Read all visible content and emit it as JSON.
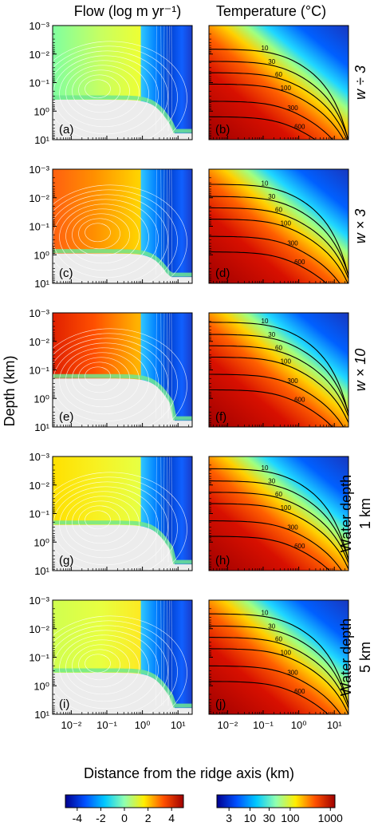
{
  "chart_data": {
    "type": "heatmap",
    "column_titles": [
      "Flow (log m yr⁻¹)",
      "Temperature (°C)"
    ],
    "ylabel": "Depth (km)",
    "xlabel": "Distance from the ridge axis (km)",
    "x_scale": "log",
    "y_scale": "log",
    "y_inverted": true,
    "xlim": [
      0.003,
      25
    ],
    "ylim": [
      0.001,
      10
    ],
    "x_ticks": [
      "10⁻²",
      "10⁻¹",
      "10⁰",
      "10¹"
    ],
    "y_ticks": [
      "10⁻³",
      "10⁻²",
      "10⁻¹",
      "10⁰",
      "10¹"
    ],
    "rows": [
      {
        "condition": "w ÷ 3",
        "panels": [
          "(a)",
          "(b)"
        ],
        "isotherm_labels": [
          "10",
          "30",
          "60",
          "100",
          "300",
          "600"
        ]
      },
      {
        "condition": "w × 3",
        "panels": [
          "(c)",
          "(d)"
        ],
        "isotherm_labels": [
          "10",
          "30",
          "60",
          "100",
          "300",
          "600"
        ]
      },
      {
        "condition": "w × 10",
        "panels": [
          "(e)",
          "(f)"
        ],
        "isotherm_labels": [
          "10",
          "30",
          "60",
          "100",
          "300",
          "600"
        ]
      },
      {
        "condition": "Water depth 1 km",
        "panels": [
          "(g)",
          "(h)"
        ],
        "isotherm_labels": [
          "10",
          "30",
          "60",
          "100",
          "300",
          "600"
        ]
      },
      {
        "condition": "Water depth 5 km",
        "panels": [
          "(i)",
          "(j)"
        ],
        "isotherm_labels": [
          "10",
          "30",
          "60",
          "100",
          "300",
          "600"
        ]
      }
    ],
    "colorbars": [
      {
        "name": "flow",
        "ticks": [
          "-4",
          "-2",
          "0",
          "2",
          "4"
        ],
        "range": [
          -5,
          5
        ],
        "scale": "linear",
        "colors": [
          "#000090",
          "#0050ff",
          "#00c8ff",
          "#90ffb0",
          "#ffee00",
          "#ff5000",
          "#a00000"
        ]
      },
      {
        "name": "temperature",
        "ticks": [
          "3",
          "10",
          "30",
          "100",
          "1000"
        ],
        "range": [
          1.5,
          1300
        ],
        "scale": "log",
        "colors": [
          "#000090",
          "#0050ff",
          "#00c8ff",
          "#90ffb0",
          "#ffee00",
          "#ff5000",
          "#a00000"
        ]
      }
    ],
    "grid": false
  }
}
